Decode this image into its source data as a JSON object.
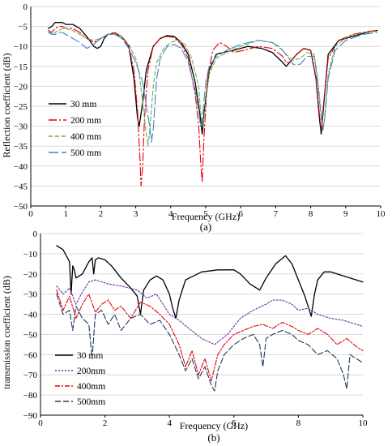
{
  "chart_data": [
    {
      "type": "line",
      "caption": "(a)",
      "xlabel": "Frequency (GHz)",
      "ylabel": "Reflection coefficient (dB)",
      "xlim": [
        0,
        10
      ],
      "ylim": [
        -50,
        0
      ],
      "xticks": [
        0,
        1,
        2,
        3,
        4,
        5,
        6,
        7,
        8,
        9,
        10
      ],
      "yticks": [
        0,
        -5,
        -10,
        -15,
        -20,
        -25,
        -30,
        -35,
        -40,
        -45,
        -50
      ],
      "grid": "horizontal",
      "legend": "left",
      "series": [
        {
          "name": "30 mm",
          "color": "#000000",
          "dash": "solid",
          "x": [
            0.5,
            0.6,
            0.7,
            0.8,
            0.9,
            1.0,
            1.2,
            1.4,
            1.6,
            1.8,
            1.9,
            2.0,
            2.1,
            2.2,
            2.4,
            2.6,
            2.8,
            2.95,
            3.05,
            3.1,
            3.2,
            3.3,
            3.5,
            3.7,
            3.9,
            4.1,
            4.3,
            4.5,
            4.7,
            4.85,
            4.9,
            4.95,
            5.1,
            5.3,
            5.5,
            5.8,
            6.2,
            6.6,
            6.9,
            7.2,
            7.3,
            7.4,
            7.6,
            7.8,
            8.0,
            8.15,
            8.25,
            8.3,
            8.35,
            8.5,
            8.8,
            9.2,
            9.6,
            9.9
          ],
          "y": [
            -5.5,
            -5,
            -4,
            -4,
            -4,
            -4.5,
            -4.5,
            -5.5,
            -7.5,
            -10,
            -10.5,
            -10,
            -8,
            -7,
            -6.8,
            -7.5,
            -10,
            -18,
            -28,
            -30,
            -24,
            -16,
            -10,
            -8,
            -7.3,
            -7.5,
            -9,
            -12,
            -19,
            -28,
            -32,
            -27,
            -16,
            -12,
            -11.5,
            -11,
            -10,
            -10.5,
            -11.5,
            -14,
            -15,
            -14,
            -12,
            -10.5,
            -11,
            -18,
            -28,
            -32,
            -27,
            -12,
            -8.5,
            -7.5,
            -6.5,
            -6
          ]
        },
        {
          "name": "200 mm",
          "color": "#e8000b",
          "dash": "10 3 2 3",
          "x": [
            0.5,
            0.6,
            0.7,
            0.8,
            0.9,
            1.0,
            1.2,
            1.4,
            1.6,
            1.8,
            2.0,
            2.2,
            2.4,
            2.6,
            2.8,
            2.95,
            3.05,
            3.12,
            3.15,
            3.2,
            3.25,
            3.35,
            3.5,
            3.7,
            3.9,
            4.1,
            4.3,
            4.5,
            4.7,
            4.8,
            4.85,
            4.88,
            4.9,
            4.95,
            5.05,
            5.2,
            5.4,
            5.6,
            5.8,
            6.1,
            6.5,
            6.9,
            7.2,
            7.3,
            7.4,
            7.6,
            7.8,
            8.0,
            8.15,
            8.25,
            8.3,
            8.35,
            8.5,
            8.8,
            9.2,
            9.6,
            9.9
          ],
          "y": [
            -6,
            -6.5,
            -5.5,
            -5,
            -5,
            -5.5,
            -5.5,
            -6.5,
            -8,
            -9,
            -8,
            -7,
            -6.5,
            -7.5,
            -10,
            -16,
            -26,
            -38,
            -45,
            -40,
            -28,
            -16,
            -10,
            -8,
            -7.5,
            -7.8,
            -9.5,
            -13,
            -22,
            -30,
            -38,
            -42,
            -44,
            -33,
            -18,
            -11,
            -9,
            -10,
            -11.5,
            -11,
            -10,
            -10.5,
            -12.5,
            -14,
            -14,
            -12,
            -10.5,
            -11,
            -18,
            -27,
            -31,
            -26,
            -13,
            -8.5,
            -7,
            -6.3,
            -6
          ]
        },
        {
          "name": "400 mm",
          "color": "#70ad47",
          "dash": "5 3",
          "x": [
            0.5,
            0.6,
            0.7,
            0.8,
            0.9,
            1.0,
            1.2,
            1.4,
            1.6,
            1.8,
            2.0,
            2.2,
            2.4,
            2.6,
            2.8,
            3.0,
            3.1,
            3.2,
            3.3,
            3.35,
            3.4,
            3.5,
            3.6,
            3.8,
            4.0,
            4.2,
            4.4,
            4.6,
            4.8,
            4.85,
            4.9,
            4.95,
            5.0,
            5.1,
            5.3,
            5.6,
            6.0,
            6.5,
            6.9,
            7.1,
            7.3,
            7.5,
            7.7,
            7.9,
            8.1,
            8.2,
            8.3,
            8.35,
            8.4,
            8.5,
            8.7,
            9.0,
            9.5,
            9.9
          ],
          "y": [
            -6.5,
            -7,
            -6.5,
            -6,
            -5.5,
            -5.5,
            -6,
            -7,
            -8,
            -8.5,
            -8,
            -7,
            -6.8,
            -7.5,
            -9.5,
            -13,
            -17,
            -24,
            -32,
            -35,
            -31,
            -20,
            -14,
            -10.5,
            -9,
            -8.5,
            -9.5,
            -13,
            -20,
            -26,
            -30,
            -28,
            -24,
            -17,
            -13,
            -11.5,
            -10,
            -8.5,
            -9,
            -10,
            -12,
            -13.5,
            -13,
            -11.5,
            -12,
            -18,
            -27,
            -31,
            -28,
            -17,
            -10,
            -7.8,
            -6.5,
            -6.2
          ]
        },
        {
          "name": "500 mm",
          "color": "#3d85c6",
          "dash": "12 4",
          "x": [
            0.5,
            0.6,
            0.7,
            0.8,
            0.9,
            1.0,
            1.2,
            1.4,
            1.6,
            1.8,
            2.0,
            2.2,
            2.4,
            2.6,
            2.8,
            3.0,
            3.2,
            3.3,
            3.4,
            3.45,
            3.5,
            3.55,
            3.6,
            3.7,
            3.9,
            4.1,
            4.3,
            4.5,
            4.7,
            4.8,
            4.85,
            4.9,
            4.95,
            5.0,
            5.1,
            5.3,
            5.6,
            6.0,
            6.5,
            6.9,
            7.2,
            7.5,
            7.7,
            7.9,
            8.1,
            8.2,
            8.3,
            8.35,
            8.4,
            8.5,
            8.7,
            9.0,
            9.5,
            9.9
          ],
          "y": [
            -6,
            -7,
            -7,
            -6.5,
            -6.5,
            -7,
            -8,
            -9,
            -10.5,
            -9.5,
            -8,
            -7,
            -7,
            -8,
            -10.5,
            -14,
            -19,
            -25,
            -30,
            -34,
            -31,
            -24,
            -18,
            -13,
            -10,
            -9.5,
            -10.5,
            -14,
            -21,
            -26,
            -30,
            -29,
            -24,
            -19,
            -15,
            -12.5,
            -11,
            -9.5,
            -8.5,
            -9,
            -11,
            -14.5,
            -14.5,
            -12.5,
            -12.5,
            -19,
            -28,
            -31,
            -28,
            -18,
            -11,
            -8.5,
            -7,
            -6.5
          ]
        }
      ]
    },
    {
      "type": "line",
      "caption": "(b)",
      "xlabel": "Frequency (GHz)",
      "ylabel": "transmission coefficient (dB)",
      "xlim": [
        0,
        10
      ],
      "ylim": [
        -90,
        0
      ],
      "xticks": [
        0,
        2,
        4,
        6,
        8,
        10
      ],
      "yticks": [
        0,
        -10,
        -20,
        -30,
        -40,
        -50,
        -60,
        -70,
        -80,
        -90
      ],
      "grid": "horizontal",
      "legend": "left",
      "series": [
        {
          "name": "30 mm",
          "color": "#000000",
          "dash": "solid",
          "x": [
            0.5,
            0.7,
            0.9,
            0.95,
            1.0,
            1.05,
            1.1,
            1.3,
            1.5,
            1.6,
            1.65,
            1.7,
            1.8,
            2.0,
            2.2,
            2.5,
            2.8,
            3.0,
            3.1,
            3.2,
            3.4,
            3.6,
            3.8,
            4.0,
            4.1,
            4.2,
            4.3,
            4.5,
            5.0,
            5.5,
            6.0,
            6.2,
            6.5,
            6.8,
            7.0,
            7.3,
            7.6,
            7.8,
            8.0,
            8.2,
            8.4,
            8.5,
            8.6,
            8.8,
            9.0,
            9.4,
            9.8,
            10.0
          ],
          "y": [
            -6,
            -8,
            -14,
            -30,
            -16,
            -18,
            -22,
            -20,
            -14,
            -12,
            -20,
            -13,
            -12,
            -13,
            -16,
            -22,
            -27,
            -31,
            -40,
            -28,
            -23,
            -21,
            -23,
            -30,
            -37,
            -42,
            -33,
            -23,
            -19,
            -18,
            -18,
            -20,
            -25,
            -28,
            -22,
            -15,
            -11,
            -15,
            -23,
            -31,
            -41,
            -30,
            -23,
            -19,
            -19,
            -21,
            -23,
            -24
          ]
        },
        {
          "name": "200mm",
          "color": "#7030a0",
          "dash": "2 2",
          "x": [
            0.5,
            0.7,
            0.9,
            1.1,
            1.3,
            1.5,
            1.7,
            1.9,
            2.1,
            2.5,
            3.0,
            3.3,
            3.6,
            4.0,
            4.3,
            4.6,
            5.0,
            5.4,
            5.8,
            6.2,
            6.6,
            7.0,
            7.2,
            7.5,
            7.8,
            8.0,
            8.3,
            8.6,
            9.0,
            9.4,
            9.8,
            10.0
          ],
          "y": [
            -26,
            -30,
            -27,
            -35,
            -29,
            -24,
            -23,
            -24,
            -25,
            -26,
            -28,
            -32,
            -30,
            -40,
            -43,
            -47,
            -52,
            -55,
            -50,
            -42,
            -38,
            -35,
            -33,
            -33,
            -35,
            -38,
            -37,
            -40,
            -42,
            -43,
            -45,
            -46
          ]
        },
        {
          "name": "400mm",
          "color": "#e8000b",
          "dash": "6 2 2 2",
          "x": [
            0.5,
            0.7,
            0.9,
            1.1,
            1.3,
            1.5,
            1.7,
            1.9,
            2.1,
            2.3,
            2.5,
            2.8,
            3.1,
            3.4,
            3.7,
            4.0,
            4.3,
            4.5,
            4.7,
            4.9,
            5.1,
            5.3,
            5.5,
            5.7,
            6.0,
            6.3,
            6.6,
            6.9,
            7.2,
            7.5,
            7.8,
            8.0,
            8.3,
            8.6,
            8.9,
            9.2,
            9.5,
            9.8,
            10.0
          ],
          "y": [
            -28,
            -38,
            -31,
            -42,
            -35,
            -30,
            -39,
            -35,
            -33,
            -38,
            -36,
            -42,
            -34,
            -36,
            -40,
            -45,
            -55,
            -66,
            -58,
            -70,
            -62,
            -73,
            -60,
            -55,
            -50,
            -48,
            -46,
            -45,
            -47,
            -44,
            -46,
            -48,
            -50,
            -47,
            -50,
            -55,
            -52,
            -56,
            -58
          ]
        },
        {
          "name": "500mm",
          "color": "#1f3864",
          "dash": "7 3",
          "x": [
            0.5,
            0.7,
            0.9,
            1.0,
            1.1,
            1.3,
            1.5,
            1.6,
            1.7,
            1.9,
            2.1,
            2.3,
            2.5,
            2.8,
            3.1,
            3.4,
            3.7,
            4.0,
            4.3,
            4.5,
            4.7,
            4.9,
            5.1,
            5.3,
            5.4,
            5.5,
            5.7,
            6.0,
            6.3,
            6.6,
            6.8,
            6.9,
            7.0,
            7.2,
            7.5,
            7.8,
            8.0,
            8.3,
            8.6,
            8.9,
            9.2,
            9.4,
            9.5,
            9.6,
            9.8,
            10.0
          ],
          "y": [
            -30,
            -40,
            -38,
            -48,
            -36,
            -42,
            -45,
            -62,
            -40,
            -38,
            -45,
            -40,
            -48,
            -42,
            -40,
            -45,
            -43,
            -50,
            -60,
            -68,
            -62,
            -72,
            -66,
            -75,
            -78,
            -68,
            -60,
            -55,
            -52,
            -50,
            -55,
            -66,
            -52,
            -50,
            -48,
            -50,
            -53,
            -55,
            -60,
            -58,
            -62,
            -70,
            -77,
            -60,
            -62,
            -64
          ]
        }
      ]
    }
  ]
}
